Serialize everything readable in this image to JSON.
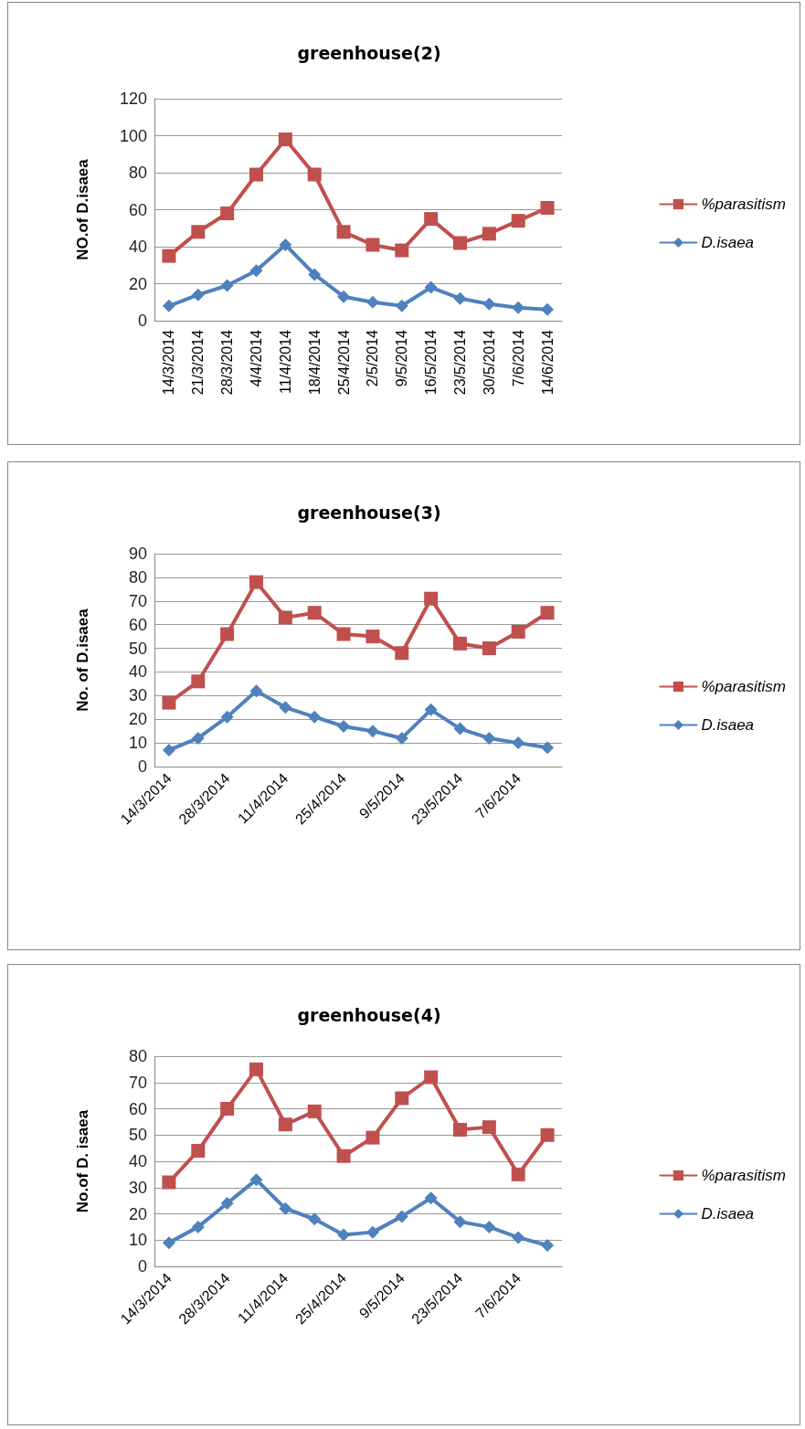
{
  "chart_data": [
    {
      "type": "line",
      "title": "greenhouse(2)",
      "ylabel": "NO.of D.isaea",
      "categories": [
        "14/3/2014",
        "21/3/2014",
        "28/3/2014",
        "4/4/2014",
        "11/4/2014",
        "18/4/2014",
        "25/4/2014",
        "2/5/2014",
        "9/5/2014",
        "16/5/2014",
        "23/5/2014",
        "30/5/2014",
        "7/6/2014",
        "14/6/2014"
      ],
      "series": [
        {
          "name": "%parasitism",
          "color": "#c0504d",
          "marker": "square",
          "values": [
            35,
            48,
            58,
            79,
            98,
            79,
            48,
            41,
            38,
            55,
            42,
            47,
            54,
            61
          ]
        },
        {
          "name": "D.isaea",
          "color": "#4f81bd",
          "marker": "diamond",
          "values": [
            8,
            14,
            19,
            27,
            41,
            25,
            13,
            10,
            8,
            18,
            12,
            9,
            7,
            6
          ]
        }
      ],
      "ylim": [
        0,
        120
      ],
      "yticks": [
        0,
        20,
        40,
        60,
        80,
        100,
        120
      ],
      "grid": "y",
      "legend": "right"
    },
    {
      "type": "line",
      "title": "greenhouse(3)",
      "ylabel": "No. of D.isaea",
      "categories": [
        "14/3/2014",
        null,
        "28/3/2014",
        null,
        "11/4/2014",
        null,
        "25/4/2014",
        null,
        "9/5/2014",
        null,
        "23/5/2014",
        null,
        "7/6/2014",
        null
      ],
      "series": [
        {
          "name": "%parasitism",
          "color": "#c0504d",
          "marker": "square",
          "values": [
            27,
            36,
            56,
            78,
            63,
            65,
            56,
            55,
            48,
            71,
            52,
            50,
            57,
            65
          ]
        },
        {
          "name": "D.isaea",
          "color": "#4f81bd",
          "marker": "diamond",
          "values": [
            7,
            12,
            21,
            32,
            25,
            21,
            17,
            15,
            12,
            24,
            16,
            12,
            10,
            8
          ]
        }
      ],
      "ylim": [
        0,
        90
      ],
      "yticks": [
        0,
        10,
        20,
        30,
        40,
        50,
        60,
        70,
        80,
        90
      ],
      "grid": "y",
      "legend": "right"
    },
    {
      "type": "line",
      "title": "greenhouse(4)",
      "ylabel": "No.of D. isaea",
      "categories": [
        "14/3/2014",
        null,
        "28/3/2014",
        null,
        "11/4/2014",
        null,
        "25/4/2014",
        null,
        "9/5/2014",
        null,
        "23/5/2014",
        null,
        "7/6/2014",
        null
      ],
      "series": [
        {
          "name": "%parasitism",
          "color": "#c0504d",
          "marker": "square",
          "values": [
            32,
            44,
            60,
            75,
            54,
            59,
            42,
            49,
            64,
            72,
            52,
            53,
            35,
            50
          ]
        },
        {
          "name": "D.isaea",
          "color": "#4f81bd",
          "marker": "diamond",
          "values": [
            9,
            15,
            24,
            33,
            22,
            18,
            12,
            13,
            19,
            26,
            17,
            15,
            11,
            8
          ]
        }
      ],
      "ylim": [
        0,
        80
      ],
      "yticks": [
        0,
        10,
        20,
        30,
        40,
        50,
        60,
        70,
        80
      ],
      "grid": "y",
      "legend": "right"
    }
  ]
}
